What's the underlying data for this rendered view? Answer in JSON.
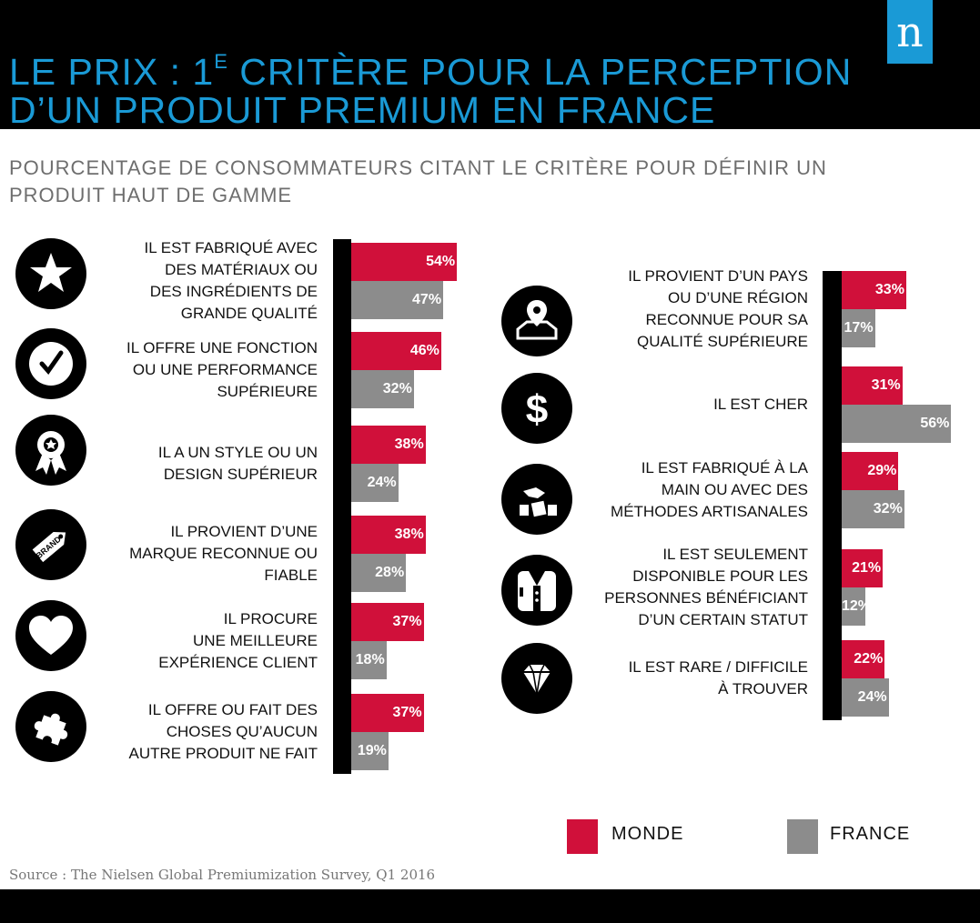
{
  "header": {
    "title_line1_pre": "LE PRIX : 1",
    "title_line1_sup": "E",
    "title_line1_post": " CRITÈRE POUR LA PERCEPTION",
    "title_line2": "D’UN PRODUIT PREMIUM EN FRANCE",
    "logo_letter": "n"
  },
  "subtitle": "POURCENTAGE DE CONSOMMATEURS CITANT LE CRITÈRE POUR DÉFINIR UN PRODUIT HAUT DE GAMME",
  "source": "Source : The Nielsen Global Premiumization Survey, Q1 2016",
  "colors": {
    "monde": "#d0103a",
    "france": "#8c8c8c",
    "title": "#1a9ad6"
  },
  "chart_data": {
    "type": "bar",
    "orientation": "horizontal",
    "unit": "%",
    "legend_position": "bottom-right",
    "series": [
      {
        "name": "MONDE",
        "color": "#d0103a"
      },
      {
        "name": "FRANCE",
        "color": "#8c8c8c"
      }
    ],
    "panels": [
      {
        "column": "left",
        "items": [
          {
            "label": "IL EST FABRIQUÉ AVEC\nDES MATÉRIAUX OU\nDES INGRÉDIENTS DE\nGRANDE QUALITÉ",
            "icon": "star-icon",
            "monde": 54,
            "france": 47,
            "monde_label": "54%",
            "france_label": "47%"
          },
          {
            "label": "IL OFFRE UNE FONCTION\nOU UNE PERFORMANCE\nSUPÉRIEURE",
            "icon": "checkmark-icon",
            "monde": 46,
            "france": 32,
            "monde_label": "46%",
            "france_label": "32%"
          },
          {
            "label": "IL A UN STYLE OU UN\nDESIGN SUPÉRIEUR",
            "icon": "award-ribbon-icon",
            "monde": 38,
            "france": 24,
            "monde_label": "38%",
            "france_label": "24%"
          },
          {
            "label": "IL PROVIENT D’UNE\nMARQUE RECONNUE OU\nFIABLE",
            "icon": "brand-tag-icon",
            "icon_text": "BRAND",
            "monde": 38,
            "france": 28,
            "monde_label": "38%",
            "france_label": "28%"
          },
          {
            "label": "IL PROCURE\nUNE MEILLEURE\nEXPÉRIENCE CLIENT",
            "icon": "heart-icon",
            "monde": 37,
            "france": 18,
            "monde_label": "37%",
            "france_label": "18%"
          },
          {
            "label": "IL OFFRE OU FAIT DES\nCHOSES QU’AUCUN\nAUTRE PRODUIT NE FAIT",
            "icon": "puzzle-piece-icon",
            "monde": 37,
            "france": 19,
            "monde_label": "37%",
            "france_label": "19%"
          }
        ]
      },
      {
        "column": "right",
        "items": [
          {
            "label": "IL PROVIENT D’UN PAYS\nOU D’UNE RÉGION\nRECONNUE POUR SA\nQUALITÉ SUPÉRIEURE",
            "icon": "map-pin-icon",
            "monde": 33,
            "france": 17,
            "monde_label": "33%",
            "france_label": "17%"
          },
          {
            "label": "IL EST CHER",
            "icon": "dollar-icon",
            "monde": 31,
            "france": 56,
            "monde_label": "31%",
            "france_label": "56%"
          },
          {
            "label": "IL EST FABRIQUÉ À LA\nMAIN OU AVEC DES\nMÉTHODES ARTISANALES",
            "icon": "handcraft-icon",
            "monde": 29,
            "france": 32,
            "monde_label": "29%",
            "france_label": "32%"
          },
          {
            "label": "IL EST SEULEMENT\nDISPONIBLE POUR LES\nPERSONNES BÉNÉFICIANT\nD’UN CERTAIN STATUT",
            "icon": "tuxedo-icon",
            "monde": 21,
            "france": 12,
            "monde_label": "21%",
            "france_label": "12%"
          },
          {
            "label": "IL EST RARE / DIFFICILE\nÀ TROUVER",
            "icon": "diamond-icon",
            "monde": 22,
            "france": 24,
            "monde_label": "22%",
            "france_label": "24%"
          }
        ]
      }
    ]
  }
}
